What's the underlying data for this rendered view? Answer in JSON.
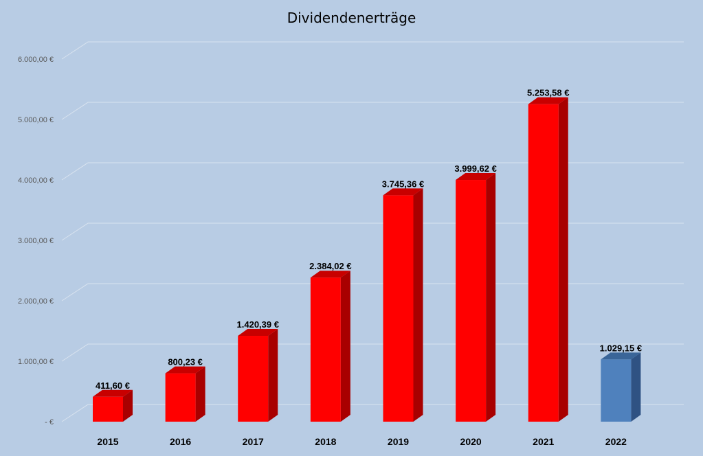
{
  "chart_data": {
    "type": "bar",
    "title": "Dividendenerträge",
    "xlabel": "",
    "ylabel": "",
    "ylim": [
      0,
      6000
    ],
    "grid": true,
    "legend": "none",
    "categories": [
      "2015",
      "2016",
      "2017",
      "2018",
      "2019",
      "2020",
      "2021",
      "2022"
    ],
    "values": [
      411.6,
      800.23,
      1420.39,
      2384.02,
      3745.36,
      3999.62,
      5253.58,
      1029.15
    ],
    "data_labels": [
      "411,60 €",
      "800,23 €",
      "1.420,39 €",
      "2.384,02 €",
      "3.745,36 €",
      "3.999,62 €",
      "5.253,58 €",
      "1.029,15 €"
    ],
    "y_ticks": [
      0,
      1000,
      2000,
      3000,
      4000,
      5000,
      6000
    ],
    "y_tick_labels": [
      "-   €",
      "1.000,00 €",
      "2.000,00 €",
      "3.000,00 €",
      "4.000,00 €",
      "5.000,00 €",
      "6.000,00 €"
    ],
    "colors": {
      "background": "#b8cce4",
      "bar_front": [
        "#ff0000",
        "#ff0000",
        "#ff0000",
        "#ff0000",
        "#ff0000",
        "#ff0000",
        "#ff0000",
        "#4f81bd"
      ],
      "bar_side": [
        "#a80000",
        "#a80000",
        "#a80000",
        "#a80000",
        "#a80000",
        "#a80000",
        "#a80000",
        "#2f5283"
      ],
      "bar_top": [
        "#c80000",
        "#c80000",
        "#c80000",
        "#c80000",
        "#c80000",
        "#c80000",
        "#c80000",
        "#3a6598"
      ],
      "gridline": "#d9e3ef"
    }
  }
}
